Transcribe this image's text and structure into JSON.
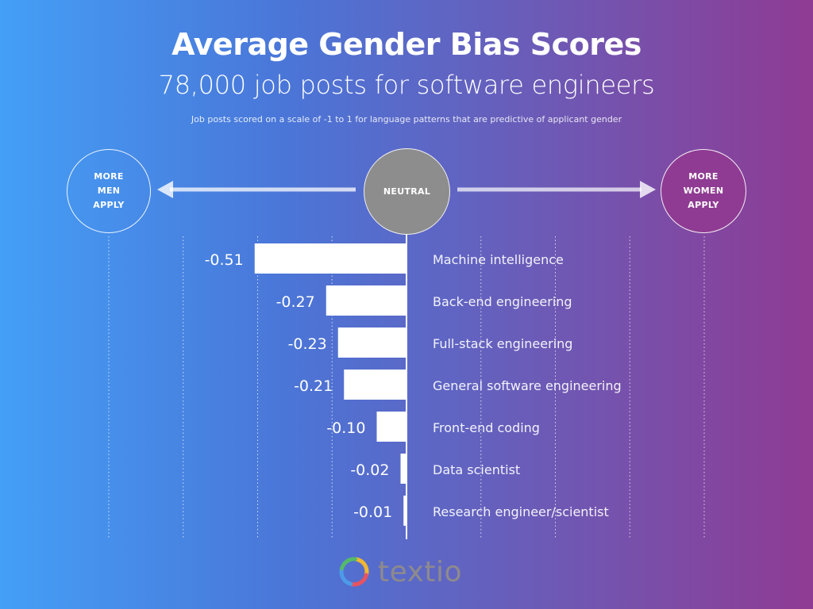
{
  "header": {
    "title": "Average Gender Bias Scores",
    "subtitle": "78,000 job posts for software engineers",
    "note": "Job posts scored on a scale of -1 to 1 for language patterns that are predictive of applicant gender"
  },
  "scale": {
    "left_label": "MORE\nMEN\nAPPLY",
    "center_label": "NEUTRAL",
    "right_label": "MORE\nWOMEN\nAPPLY"
  },
  "chart_data": {
    "type": "bar",
    "orientation": "horizontal",
    "title": "Average Gender Bias Scores",
    "subtitle": "78,000 job posts for software engineers",
    "xlim": [
      -1,
      1
    ],
    "categories": [
      "Machine intelligence",
      "Back-end engineering",
      "Full-stack engineering",
      "General software engineering",
      "Front-end coding",
      "Data scientist",
      "Research engineer/scientist"
    ],
    "values": [
      -0.51,
      -0.27,
      -0.23,
      -0.21,
      -0.1,
      -0.02,
      -0.01
    ],
    "value_labels": [
      "-0.51",
      "-0.27",
      "-0.23",
      "-0.21",
      "-0.10",
      "-0.02",
      "-0.01"
    ],
    "grid": true,
    "bar_color": "#ffffff"
  },
  "logo": {
    "text": "textio",
    "colors": [
      "#f2b632",
      "#e8535f",
      "#4c9be8",
      "#55b96a"
    ]
  }
}
